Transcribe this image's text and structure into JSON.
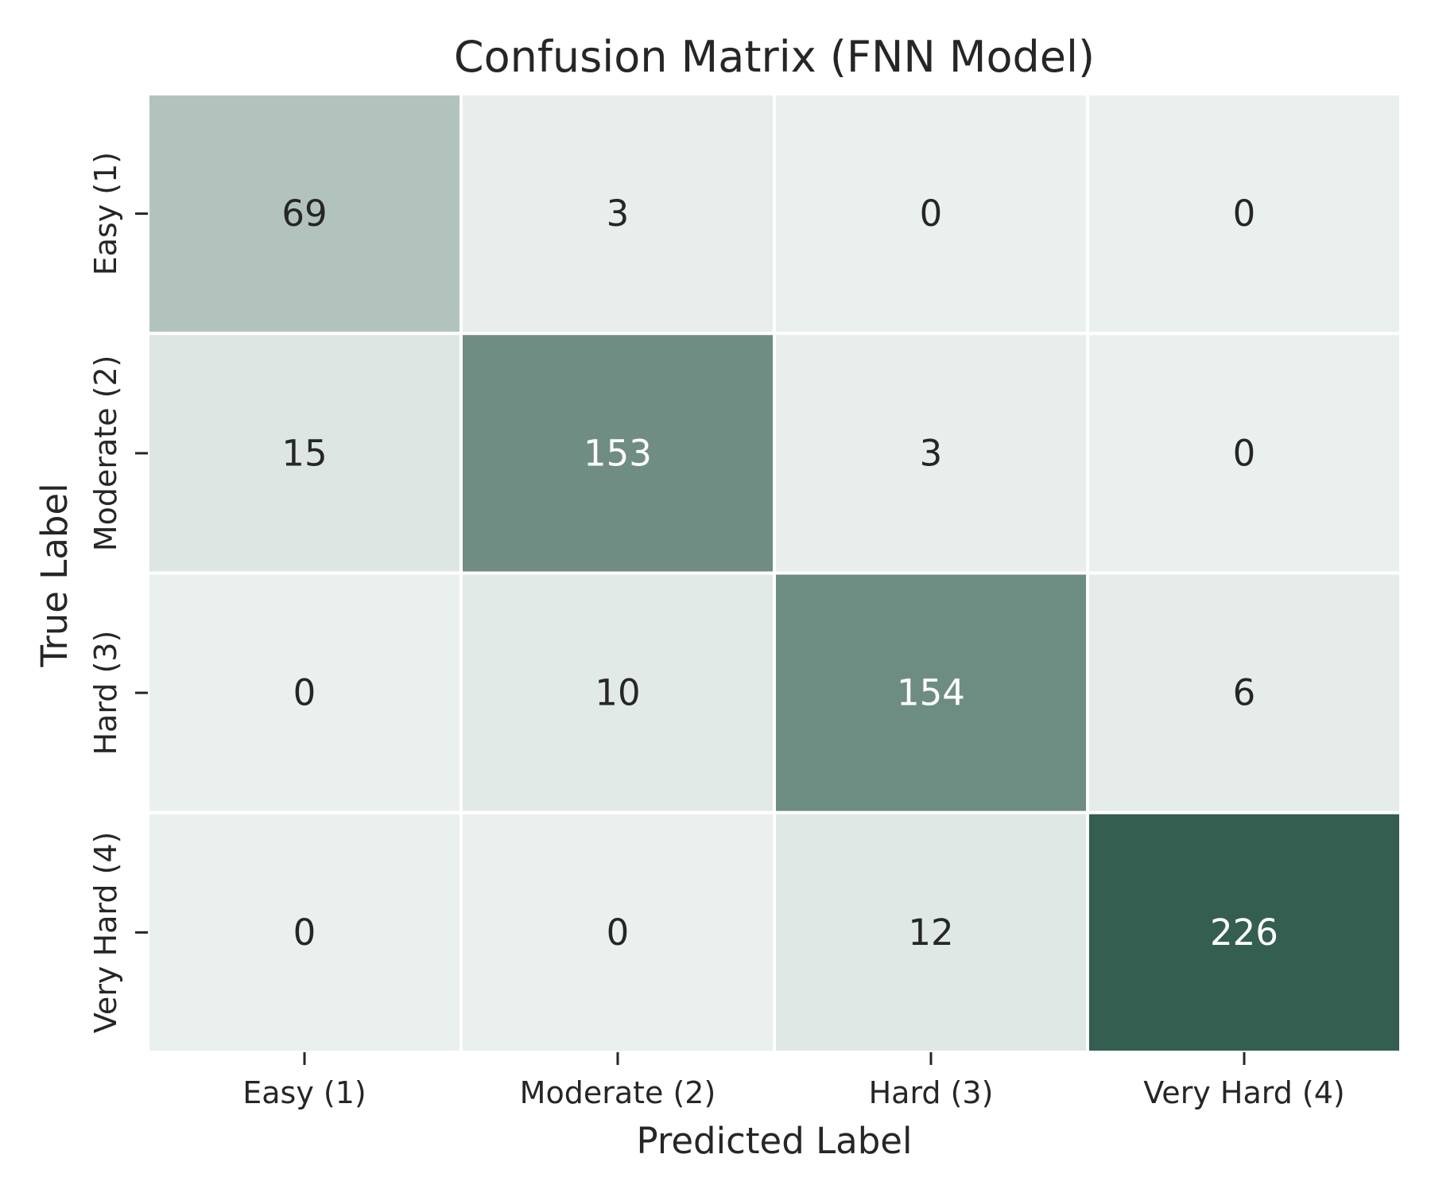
{
  "chart_data": {
    "type": "heatmap",
    "title": "Confusion Matrix (FNN Model)",
    "xlabel": "Predicted Label",
    "ylabel": "True Label",
    "x_categories": [
      "Easy (1)",
      "Moderate (2)",
      "Hard (3)",
      "Very Hard (4)"
    ],
    "y_categories": [
      "Easy (1)",
      "Moderate (2)",
      "Hard (3)",
      "Very Hard (4)"
    ],
    "matrix": [
      [
        69,
        3,
        0,
        0
      ],
      [
        15,
        153,
        3,
        0
      ],
      [
        0,
        10,
        154,
        6
      ],
      [
        0,
        0,
        12,
        226
      ]
    ],
    "colorbar": false,
    "colors": {
      "low": "#eaf0ee",
      "high": "#345e50",
      "text_dark": "#262626",
      "text_light": "#ffffff",
      "gridline": "#ffffff"
    }
  }
}
